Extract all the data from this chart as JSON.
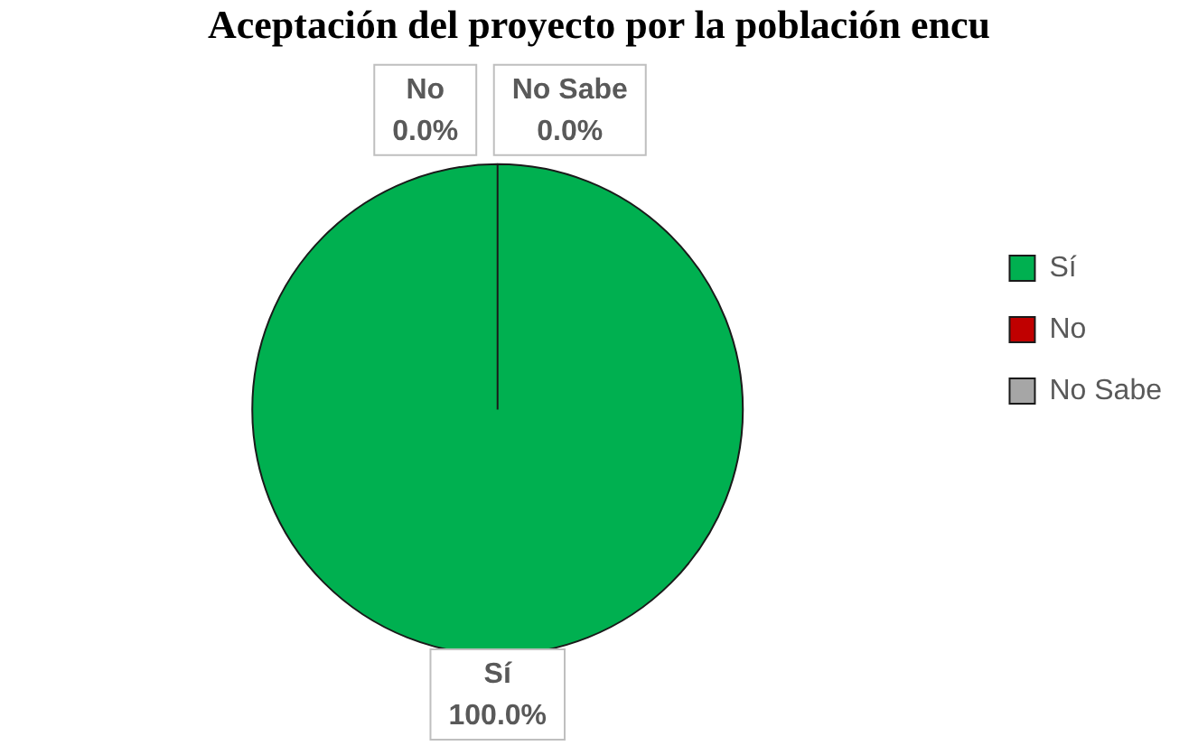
{
  "chart_data": {
    "type": "pie",
    "title": "Aceptación del proyecto por la población encu",
    "categories": [
      "Sí",
      "No",
      "No Sabe"
    ],
    "values": [
      100,
      0,
      0
    ],
    "colors": [
      "#00b050",
      "#c00000",
      "#a6a6a6"
    ],
    "value_labels": [
      "100.0%",
      "0.0%",
      "0.0%"
    ],
    "legend": "right"
  }
}
